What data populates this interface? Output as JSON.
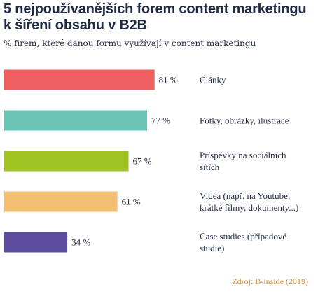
{
  "title": "5 nejpoužívanějších forem content marketingu k šíření obsahu v B2B",
  "subtitle": "% firem, které danou formu využívají v content marketingu",
  "source": "Zdroj: B-inside (2019)",
  "colors": {
    "text": "#1f2a44",
    "source": "#e58a2e"
  },
  "chart_data": {
    "type": "bar",
    "orientation": "horizontal",
    "title": "5 nejpoužívanějších forem content marketingu k šíření obsahu v B2B",
    "subtitle": "% firem, které danou formu využívají v content marketingu",
    "xlim": [
      0,
      100
    ],
    "unit": "%",
    "categories": [
      [
        "Články"
      ],
      [
        "Fotky, obrázky, ilustrace"
      ],
      [
        "Příspěvky na sociálních",
        "sítích"
      ],
      [
        "Videa (např. na Youtube,",
        "krátké filmy, dokumenty...)"
      ],
      [
        "Case studies (případové",
        "studie)"
      ]
    ],
    "values": [
      81,
      77,
      67,
      61,
      34
    ],
    "value_labels": [
      "81 %",
      "77 %",
      "67 %",
      "61 %",
      "34 %"
    ],
    "bar_colors": [
      "#ef5f5f",
      "#6cc4b5",
      "#a0c324",
      "#f2bf73",
      "#5d4b9e"
    ]
  }
}
